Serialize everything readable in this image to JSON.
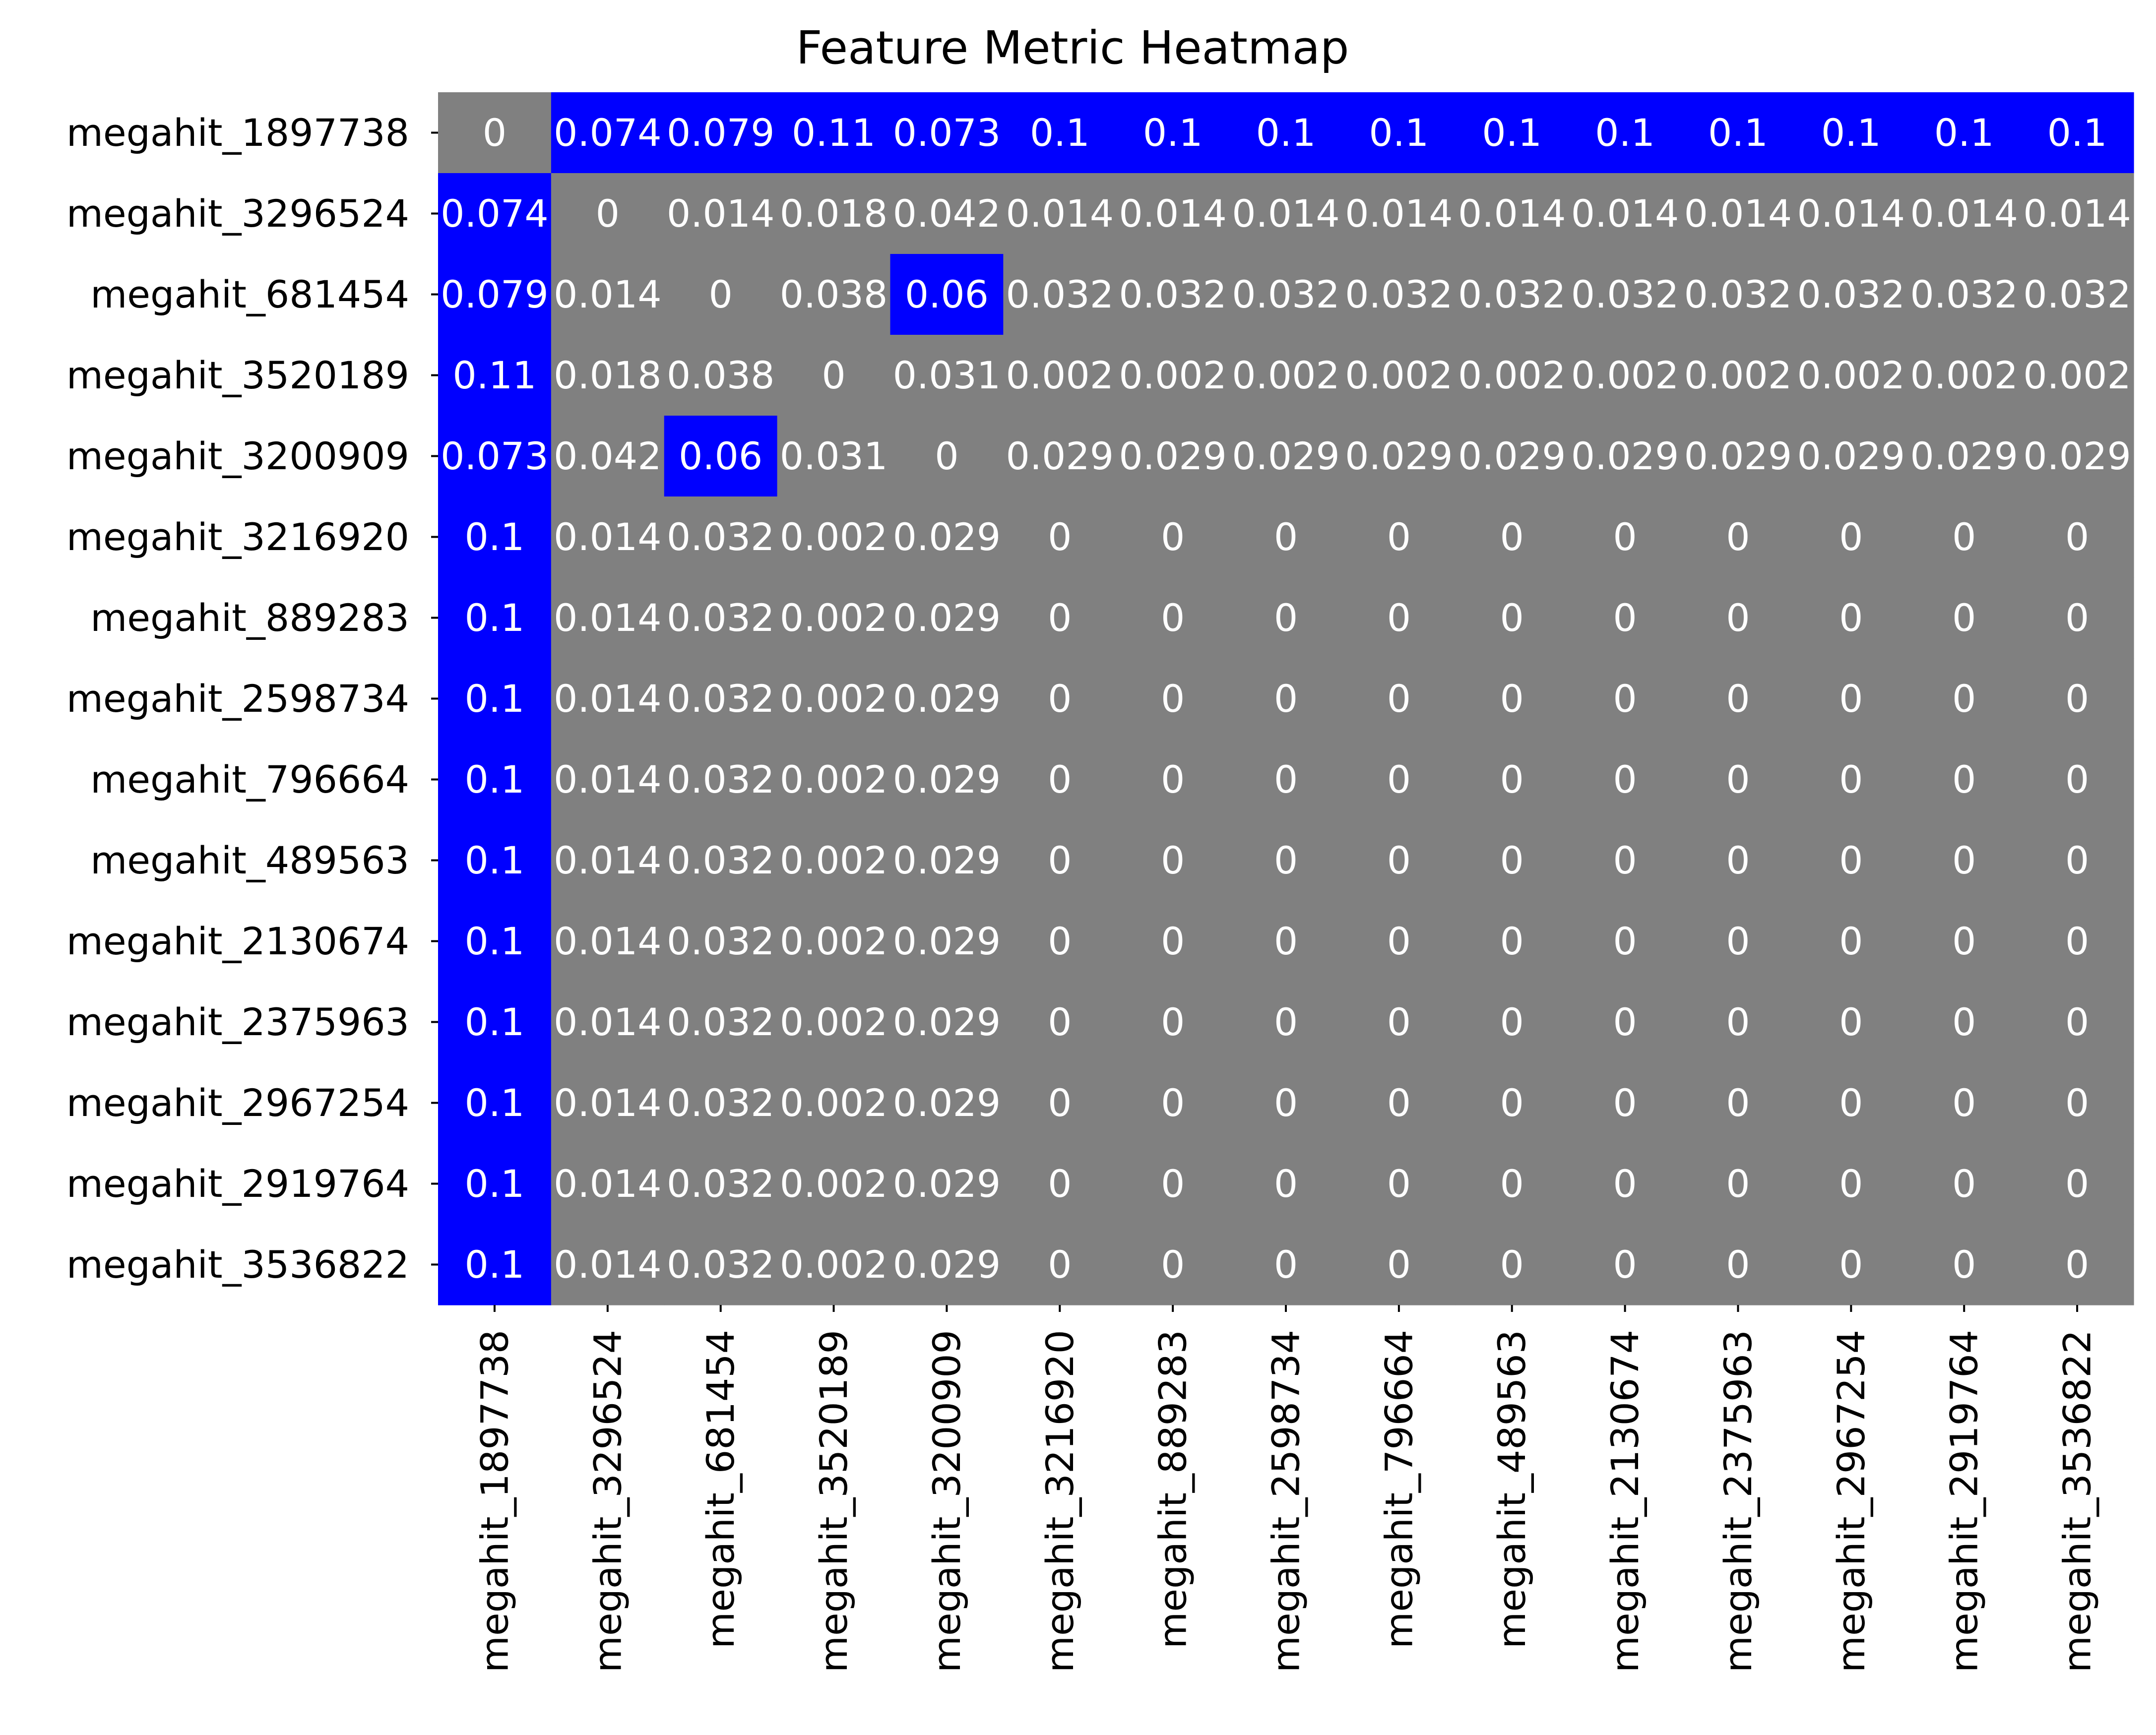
{
  "chart_data": {
    "type": "heatmap",
    "title": "Feature Metric Heatmap",
    "xlabel": "",
    "ylabel": "",
    "row_labels": [
      "megahit_1897738",
      "megahit_3296524",
      "megahit_681454",
      "megahit_3520189",
      "megahit_3200909",
      "megahit_3216920",
      "megahit_889283",
      "megahit_2598734",
      "megahit_796664",
      "megahit_489563",
      "megahit_2130674",
      "megahit_2375963",
      "megahit_2967254",
      "megahit_2919764",
      "megahit_3536822"
    ],
    "col_labels": [
      "megahit_1897738",
      "megahit_3296524",
      "megahit_681454",
      "megahit_3520189",
      "megahit_3200909",
      "megahit_3216920",
      "megahit_889283",
      "megahit_2598734",
      "megahit_796664",
      "megahit_489563",
      "megahit_2130674",
      "megahit_2375963",
      "megahit_2967254",
      "megahit_2919764",
      "megahit_3536822"
    ],
    "values": [
      [
        0,
        0.074,
        0.079,
        0.11,
        0.073,
        0.1,
        0.1,
        0.1,
        0.1,
        0.1,
        0.1,
        0.1,
        0.1,
        0.1,
        0.1
      ],
      [
        0.074,
        0,
        0.014,
        0.018,
        0.042,
        0.014,
        0.014,
        0.014,
        0.014,
        0.014,
        0.014,
        0.014,
        0.014,
        0.014,
        0.014
      ],
      [
        0.079,
        0.014,
        0,
        0.038,
        0.06,
        0.032,
        0.032,
        0.032,
        0.032,
        0.032,
        0.032,
        0.032,
        0.032,
        0.032,
        0.032
      ],
      [
        0.11,
        0.018,
        0.038,
        0,
        0.031,
        0.002,
        0.002,
        0.002,
        0.002,
        0.002,
        0.002,
        0.002,
        0.002,
        0.002,
        0.002
      ],
      [
        0.073,
        0.042,
        0.06,
        0.031,
        0,
        0.029,
        0.029,
        0.029,
        0.029,
        0.029,
        0.029,
        0.029,
        0.029,
        0.029,
        0.029
      ],
      [
        0.1,
        0.014,
        0.032,
        0.002,
        0.029,
        0,
        0,
        0,
        0,
        0,
        0,
        0,
        0,
        0,
        0
      ],
      [
        0.1,
        0.014,
        0.032,
        0.002,
        0.029,
        0,
        0,
        0,
        0,
        0,
        0,
        0,
        0,
        0,
        0
      ],
      [
        0.1,
        0.014,
        0.032,
        0.002,
        0.029,
        0,
        0,
        0,
        0,
        0,
        0,
        0,
        0,
        0,
        0
      ],
      [
        0.1,
        0.014,
        0.032,
        0.002,
        0.029,
        0,
        0,
        0,
        0,
        0,
        0,
        0,
        0,
        0,
        0
      ],
      [
        0.1,
        0.014,
        0.032,
        0.002,
        0.029,
        0,
        0,
        0,
        0,
        0,
        0,
        0,
        0,
        0,
        0
      ],
      [
        0.1,
        0.014,
        0.032,
        0.002,
        0.029,
        0,
        0,
        0,
        0,
        0,
        0,
        0,
        0,
        0,
        0
      ],
      [
        0.1,
        0.014,
        0.032,
        0.002,
        0.029,
        0,
        0,
        0,
        0,
        0,
        0,
        0,
        0,
        0,
        0
      ],
      [
        0.1,
        0.014,
        0.032,
        0.002,
        0.029,
        0,
        0,
        0,
        0,
        0,
        0,
        0,
        0,
        0,
        0
      ],
      [
        0.1,
        0.014,
        0.032,
        0.002,
        0.029,
        0,
        0,
        0,
        0,
        0,
        0,
        0,
        0,
        0,
        0
      ],
      [
        0.1,
        0.014,
        0.032,
        0.002,
        0.029,
        0,
        0,
        0,
        0,
        0,
        0,
        0,
        0,
        0,
        0
      ]
    ],
    "highlight_threshold": 0.05,
    "colors": {
      "high": "#0000ff",
      "low": "#808080",
      "cell_text": "#ffffff"
    },
    "colorbar": false,
    "grid": false
  }
}
